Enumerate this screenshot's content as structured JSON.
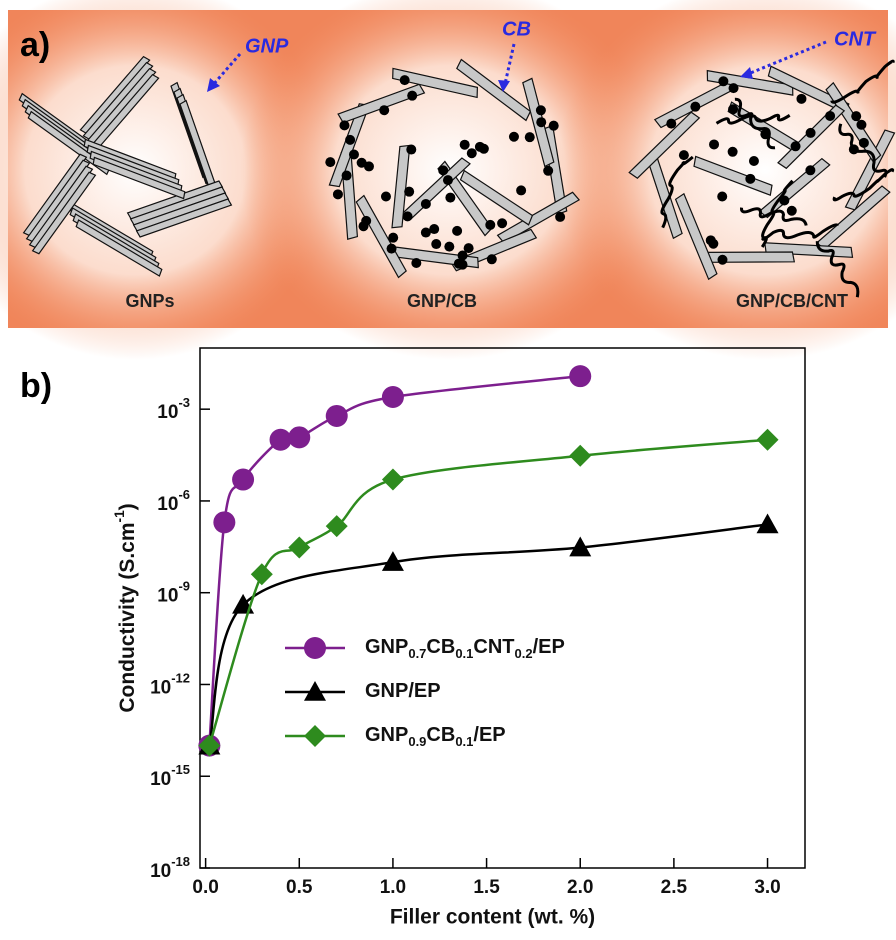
{
  "panel_a": {
    "label": "a)",
    "callouts": [
      "GNP",
      "CB",
      "CNT"
    ],
    "captions": [
      "GNPs",
      "GNP/CB",
      "GNP/CB/CNT"
    ]
  },
  "chart_data": {
    "type": "line",
    "panel_label": "b)",
    "x_label": "Filler content (wt. %)",
    "y_label": [
      {
        "text": "Conductivity (S.cm"
      },
      {
        "text": "-1",
        "sup": true
      },
      {
        "text": ")"
      }
    ],
    "xlim": [
      -0.03,
      3.2
    ],
    "xticks": [
      {
        "value": 0,
        "label": "0.0"
      },
      0.5,
      {
        "value": 1,
        "label": "1.0"
      },
      1.5,
      {
        "value": 2,
        "label": "2.0"
      },
      2.5,
      {
        "value": 3,
        "label": "3.0"
      }
    ],
    "ylim": [
      1e-18,
      0.1
    ],
    "y_log": true,
    "yticks": [
      {
        "value": 0.001,
        "label": "10",
        "exponent": "-3"
      },
      {
        "value": 1e-06,
        "label": "10",
        "exponent": "-6"
      },
      {
        "value": 1e-09,
        "label": "10",
        "exponent": "-9"
      },
      {
        "value": 1e-12,
        "label": "10",
        "exponent": "-12"
      },
      {
        "value": 1e-15,
        "label": "10",
        "exponent": "-15"
      },
      {
        "value": 1e-18,
        "label": "10",
        "exponent": "-18"
      }
    ],
    "series": [
      {
        "name": [
          {
            "text": "GNP"
          },
          {
            "text": "0.7",
            "sub": true
          },
          {
            "text": "CB"
          },
          {
            "text": "0.1",
            "sub": true
          },
          {
            "text": "CNT"
          },
          {
            "text": "0.2",
            "sub": true
          },
          {
            "text": "/EP"
          }
        ],
        "color": "#7d1f8e",
        "marker": "circle",
        "x": [
          0.02,
          0.1,
          0.2,
          0.4,
          0.5,
          0.7,
          1.0,
          2.0
        ],
        "values": [
          1e-14,
          2e-07,
          5e-06,
          0.0001,
          0.00012,
          0.0006,
          0.0025,
          0.012
        ]
      },
      {
        "name": [
          {
            "text": "GNP/EP"
          }
        ],
        "color": "#000000",
        "marker": "triangle",
        "x": [
          0.02,
          0.2,
          1.0,
          2.0,
          3.0
        ],
        "values": [
          1e-14,
          4e-10,
          1e-08,
          3e-08,
          1.7e-07
        ]
      },
      {
        "name": [
          {
            "text": "GNP"
          },
          {
            "text": "0.9",
            "sub": true
          },
          {
            "text": "CB"
          },
          {
            "text": "0.1",
            "sub": true
          },
          {
            "text": "/EP"
          }
        ],
        "color": "#2e8b1e",
        "marker": "diamond",
        "x": [
          0.02,
          0.3,
          0.5,
          0.7,
          1.0,
          2.0,
          3.0
        ],
        "values": [
          1e-14,
          4e-09,
          3e-08,
          1.5e-07,
          5e-06,
          3e-05,
          0.0001
        ]
      }
    ]
  }
}
